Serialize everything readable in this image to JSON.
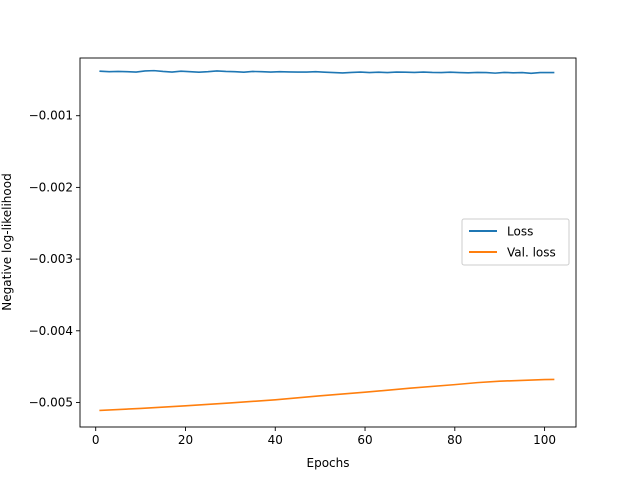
{
  "chart_data": {
    "type": "line",
    "xlabel": "Epochs",
    "ylabel": "Negative log-likelihood",
    "xlim": [
      -3.5,
      107
    ],
    "ylim": [
      -0.005342,
      -0.000195
    ],
    "xticks": [
      0,
      20,
      40,
      60,
      80,
      100
    ],
    "yticks": [
      -0.005,
      -0.004,
      -0.003,
      -0.002,
      -0.001
    ],
    "ytick_labels": [
      "−0.005",
      "−0.004",
      "−0.003",
      "−0.002",
      "−0.001"
    ],
    "legend_position": "center-right",
    "grid": false,
    "series": [
      {
        "name": "Loss",
        "color": "#1f77b4",
        "x": [
          1,
          3,
          5,
          7,
          9,
          11,
          13,
          15,
          17,
          19,
          21,
          23,
          25,
          27,
          29,
          31,
          33,
          35,
          37,
          39,
          41,
          43,
          45,
          47,
          49,
          51,
          53,
          55,
          57,
          59,
          61,
          63,
          65,
          67,
          69,
          71,
          73,
          75,
          77,
          79,
          81,
          83,
          85,
          87,
          89,
          91,
          93,
          95,
          97,
          99,
          102
        ],
        "values": [
          -0.000379,
          -0.000386,
          -0.000383,
          -0.000386,
          -0.000391,
          -0.000376,
          -0.000371,
          -0.000383,
          -0.000391,
          -0.000379,
          -0.000386,
          -0.000393,
          -0.000386,
          -0.000376,
          -0.000383,
          -0.000386,
          -0.000393,
          -0.000383,
          -0.000386,
          -0.000391,
          -0.000386,
          -0.000389,
          -0.000391,
          -0.000391,
          -0.000386,
          -0.000393,
          -0.000398,
          -0.000403,
          -0.000396,
          -0.000391,
          -0.000398,
          -0.000393,
          -0.000398,
          -0.000391,
          -0.000393,
          -0.000396,
          -0.000391,
          -0.000396,
          -0.000398,
          -0.000393,
          -0.000398,
          -0.000401,
          -0.000396,
          -0.000398,
          -0.000406,
          -0.000396,
          -0.000401,
          -0.000398,
          -0.000408,
          -0.000398,
          -0.000398
        ]
      },
      {
        "name": "Val. loss",
        "color": "#ff7f0e",
        "x": [
          1,
          10,
          20,
          30,
          40,
          50,
          60,
          70,
          80,
          85,
          90,
          100,
          102
        ],
        "values": [
          -0.005111,
          -0.005083,
          -0.005047,
          -0.005006,
          -0.004963,
          -0.004907,
          -0.004857,
          -0.004801,
          -0.004751,
          -0.004723,
          -0.004703,
          -0.004681,
          -0.004679
        ]
      }
    ]
  }
}
